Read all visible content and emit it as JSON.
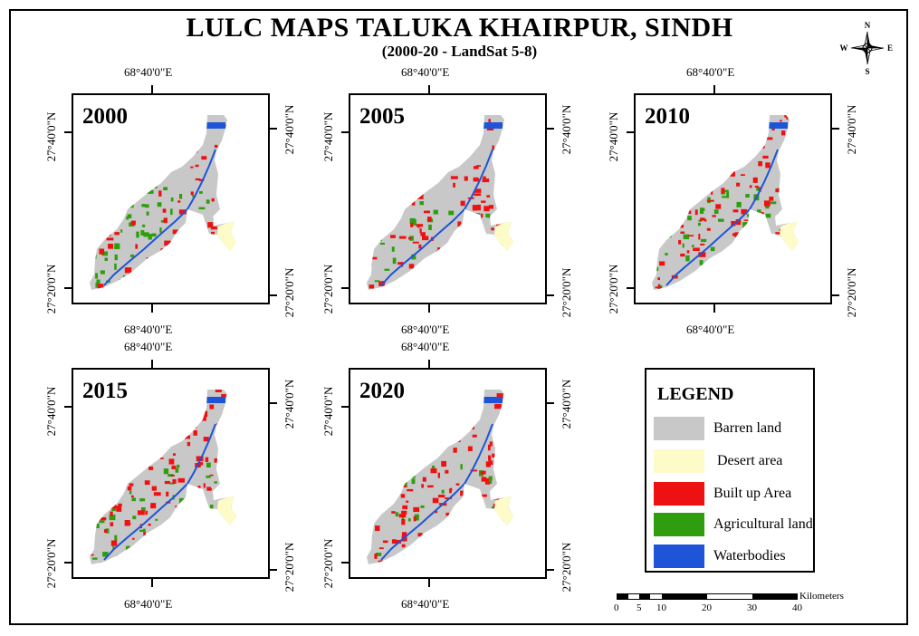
{
  "title": "LULC MAPS TALUKA KHAIRPUR, SINDH",
  "subtitle": "(2000-20 - LandSat 5-8)",
  "compass": {
    "n": "N",
    "s": "S",
    "e": "E",
    "w": "W"
  },
  "coords": {
    "lon": "68°40'0\"E",
    "lat_top": "27°40'0\"N",
    "lat_bottom": "27°20'0\"N"
  },
  "maps": [
    {
      "year": "2000",
      "builtup": 0.35,
      "agri": 0.35
    },
    {
      "year": "2005",
      "builtup": 0.55,
      "agri": 0.12
    },
    {
      "year": "2010",
      "builtup": 0.45,
      "agri": 0.25
    },
    {
      "year": "2015",
      "builtup": 0.65,
      "agri": 0.25
    },
    {
      "year": "2020",
      "builtup": 0.75,
      "agri": 0.12
    }
  ],
  "legend": {
    "title": "LEGEND",
    "items": [
      {
        "label": "Barren land",
        "color": "#c8c8c8"
      },
      {
        "label": "Desert area",
        "color": "#fdfcc8"
      },
      {
        "label": "Built up Area",
        "color": "#ee1111"
      },
      {
        "label": "Agricultural land",
        "color": "#2e9e0e"
      },
      {
        "label": "Waterbodies",
        "color": "#1e55d8"
      }
    ]
  },
  "scale": {
    "unit": "Kilometers",
    "ticks": [
      "0",
      "5",
      "10",
      "20",
      "30",
      "40"
    ]
  }
}
